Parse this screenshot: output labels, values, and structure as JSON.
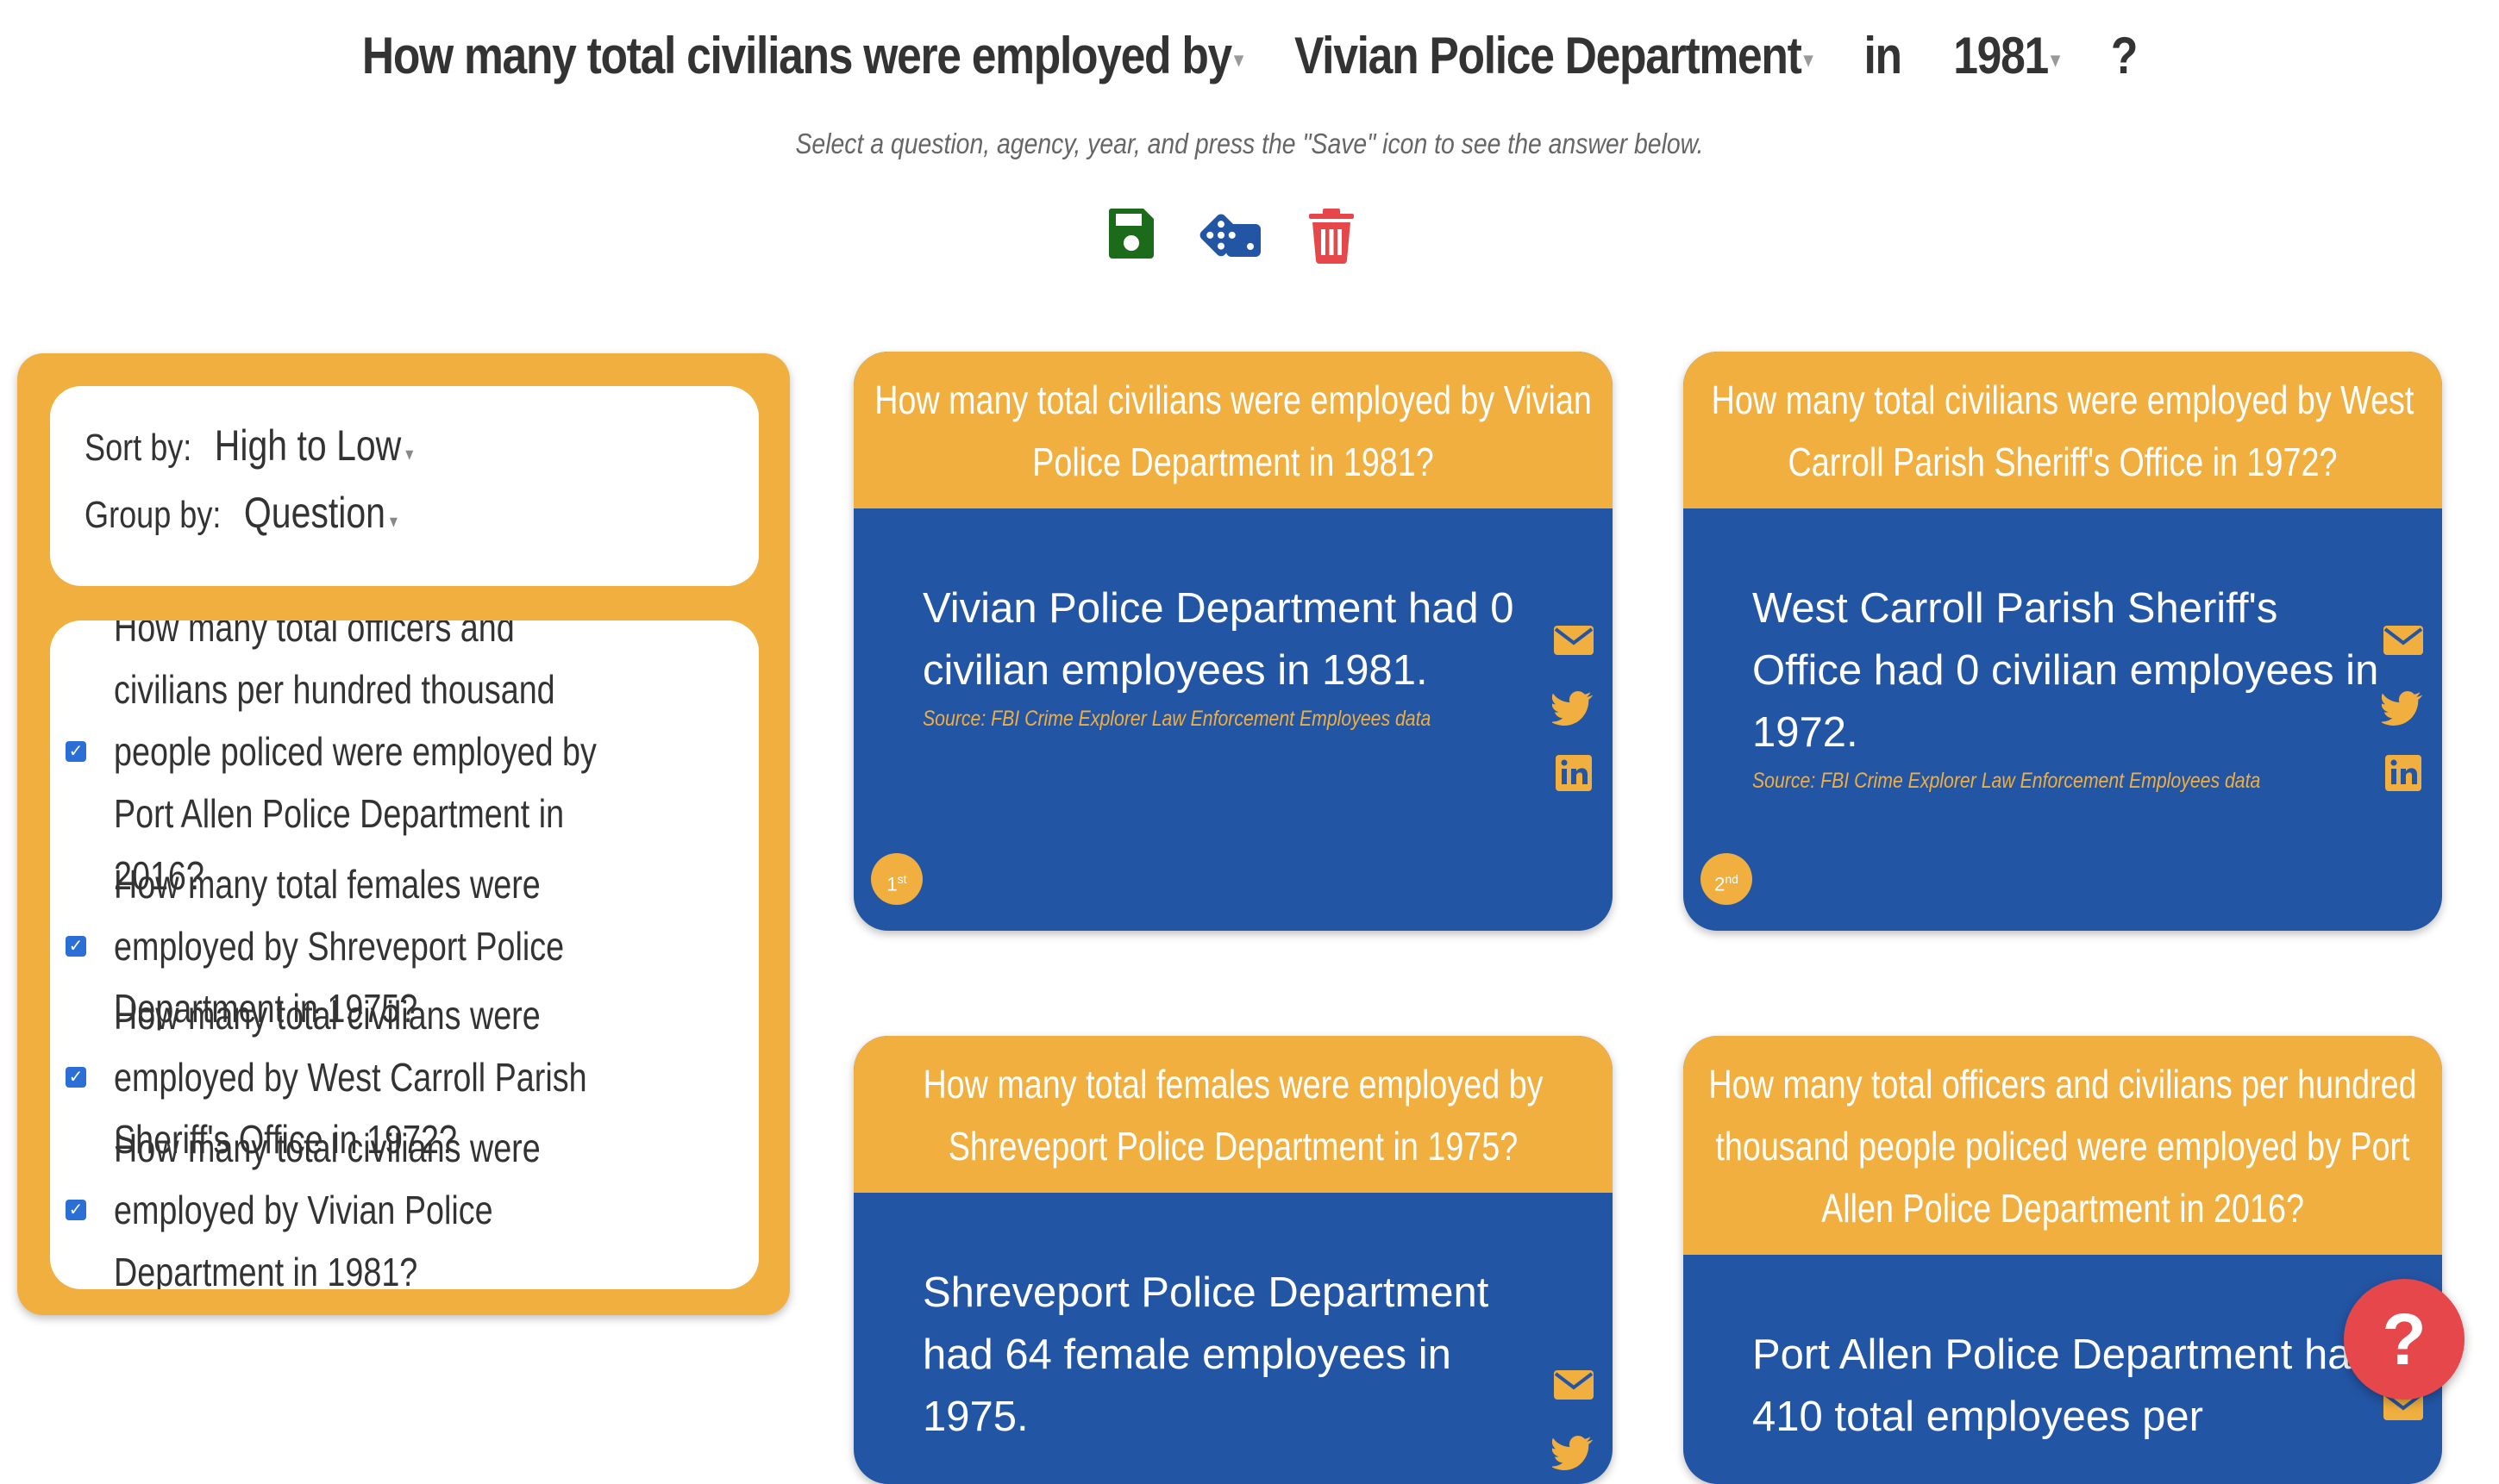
{
  "header": {
    "question": "How many total civilians were employed by",
    "agency": "Vivian Police Department",
    "connector": "in",
    "year": "1981",
    "qmark": "?",
    "caret": "▾",
    "subtitle": "Select a question, agency, year, and press the \"Save\" icon to see the answer below."
  },
  "actions": {
    "save_icon": "save-icon",
    "random_icon": "dice-icon",
    "delete_icon": "trash-icon",
    "colors": {
      "save": "#1B6B1B",
      "random": "#2355A5",
      "delete": "#E5474B"
    }
  },
  "sidebar": {
    "sort_label": "Sort by:",
    "sort_value": "High to Low",
    "group_label": "Group by:",
    "group_value": "Question",
    "check_mark": "✓",
    "questions": [
      "How many total officers and civilians per hundred thousand people policed were employed by Port Allen Police Department in 2016?",
      "How many total females were employed by Shreveport Police Department in 1975?",
      "How many total civilians were employed by West Carroll Parish Sheriff's Office in 1972?",
      "How many total civilians were employed by Vivian Police Department in 1981?"
    ]
  },
  "cards": [
    {
      "question": "How many total civilians were employed by Vivian Police Department in 1981?",
      "answer": "Vivian Police Department had 0 civilian employees in 1981.",
      "source": "Source: FBI Crime Explorer Law Enforcement Employees data",
      "rank": "1",
      "rank_suffix": "st"
    },
    {
      "question": "How many total civilians were employed by West Carroll Parish Sheriff's Office in 1972?",
      "answer": "West Carroll Parish Sheriff's Office had 0 civilian employees in 1972.",
      "source": "Source: FBI Crime Explorer Law Enforcement Employees data",
      "rank": "2",
      "rank_suffix": "nd"
    },
    {
      "question": "How many total females were employed by Shreveport Police Department in 1975?",
      "answer": "Shreveport Police Department had 64 female employees in 1975."
    },
    {
      "question": "How many total officers and civilians per hundred thousand people policed were employed by Port Allen Police Department in 2016?",
      "answer": "Port Allen Police Department had 410 total employees per"
    }
  ],
  "help": {
    "label": "?"
  },
  "colors": {
    "accent": "#F0AF3F",
    "card_blue": "#2355A5",
    "help_red": "#E5474B"
  }
}
